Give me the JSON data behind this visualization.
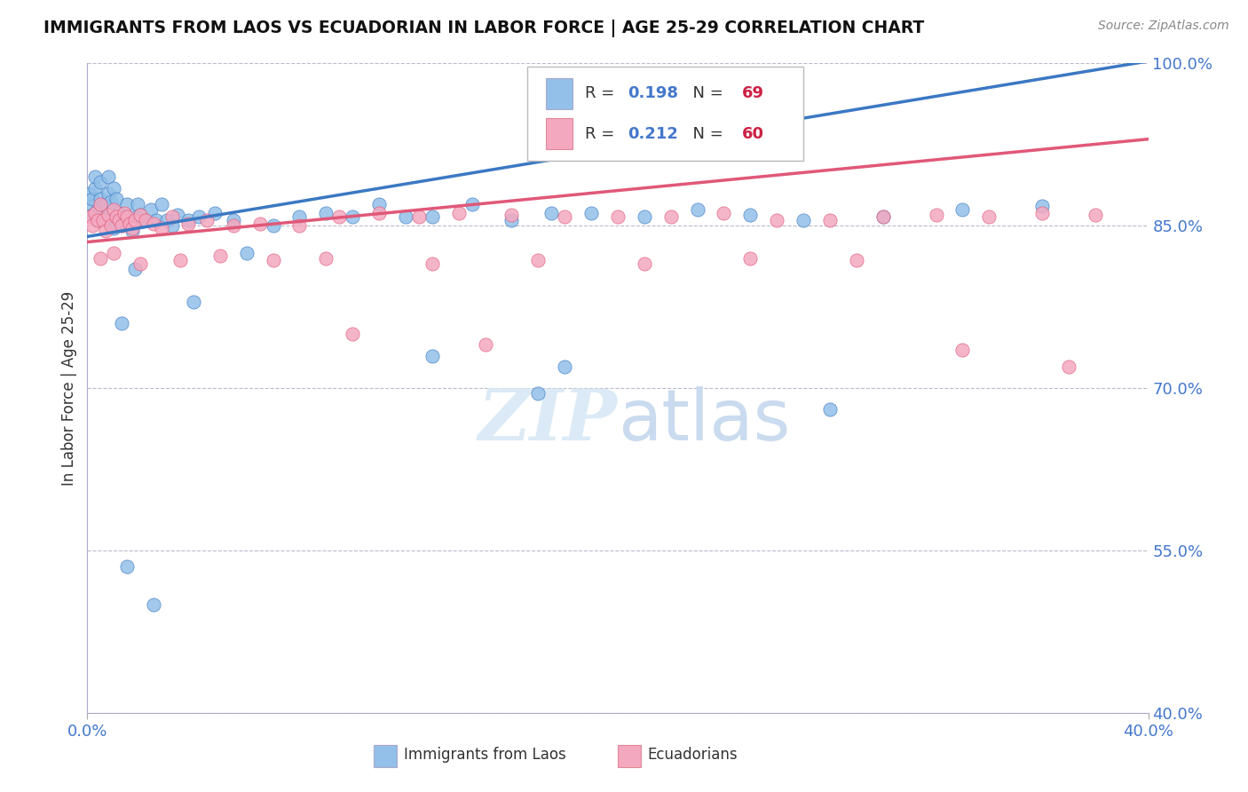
{
  "title": "IMMIGRANTS FROM LAOS VS ECUADORIAN IN LABOR FORCE | AGE 25-29 CORRELATION CHART",
  "source_text": "Source: ZipAtlas.com",
  "ylabel": "In Labor Force | Age 25-29",
  "xlim": [
    0.0,
    0.4
  ],
  "ylim": [
    0.4,
    1.0
  ],
  "yticks": [
    0.4,
    0.55,
    0.7,
    0.85,
    1.0
  ],
  "ytick_labels": [
    "40.0%",
    "55.0%",
    "70.0%",
    "85.0%",
    "100.0%"
  ],
  "blue_color": "#92C0E8",
  "pink_color": "#F4A8C0",
  "blue_line_color": "#3B78C3",
  "pink_line_color": "#E05878",
  "R_blue": 0.198,
  "N_blue": 69,
  "R_pink": 0.212,
  "N_pink": 60,
  "legend_label_blue": "Immigrants from Laos",
  "legend_label_pink": "Ecuadorians",
  "blue_x": [
    0.001,
    0.001,
    0.002,
    0.002,
    0.003,
    0.003,
    0.004,
    0.004,
    0.005,
    0.005,
    0.006,
    0.006,
    0.007,
    0.007,
    0.008,
    0.008,
    0.009,
    0.009,
    0.01,
    0.01,
    0.011,
    0.012,
    0.013,
    0.014,
    0.015,
    0.016,
    0.017,
    0.018,
    0.019,
    0.02,
    0.022,
    0.024,
    0.026,
    0.028,
    0.03,
    0.032,
    0.034,
    0.038,
    0.042,
    0.048,
    0.055,
    0.06,
    0.07,
    0.08,
    0.09,
    0.1,
    0.11,
    0.12,
    0.13,
    0.145,
    0.16,
    0.175,
    0.19,
    0.21,
    0.23,
    0.25,
    0.27,
    0.3,
    0.33,
    0.36,
    0.013,
    0.018,
    0.04,
    0.13,
    0.18,
    0.17,
    0.28,
    0.015,
    0.025
  ],
  "blue_y": [
    0.87,
    0.88,
    0.86,
    0.875,
    0.885,
    0.895,
    0.855,
    0.865,
    0.875,
    0.89,
    0.855,
    0.868,
    0.87,
    0.855,
    0.895,
    0.88,
    0.86,
    0.872,
    0.848,
    0.885,
    0.875,
    0.862,
    0.85,
    0.858,
    0.87,
    0.855,
    0.845,
    0.858,
    0.87,
    0.86,
    0.855,
    0.865,
    0.855,
    0.87,
    0.855,
    0.85,
    0.86,
    0.855,
    0.858,
    0.862,
    0.855,
    0.825,
    0.85,
    0.858,
    0.862,
    0.858,
    0.87,
    0.858,
    0.858,
    0.87,
    0.855,
    0.862,
    0.862,
    0.858,
    0.865,
    0.86,
    0.855,
    0.858,
    0.865,
    0.868,
    0.76,
    0.81,
    0.78,
    0.73,
    0.72,
    0.695,
    0.68,
    0.535,
    0.5
  ],
  "pink_x": [
    0.001,
    0.002,
    0.003,
    0.004,
    0.005,
    0.006,
    0.007,
    0.008,
    0.009,
    0.01,
    0.011,
    0.012,
    0.013,
    0.014,
    0.015,
    0.016,
    0.017,
    0.018,
    0.02,
    0.022,
    0.025,
    0.028,
    0.032,
    0.038,
    0.045,
    0.055,
    0.065,
    0.08,
    0.095,
    0.11,
    0.125,
    0.14,
    0.16,
    0.18,
    0.2,
    0.22,
    0.24,
    0.26,
    0.28,
    0.3,
    0.32,
    0.34,
    0.36,
    0.38,
    0.005,
    0.01,
    0.02,
    0.035,
    0.05,
    0.07,
    0.09,
    0.13,
    0.17,
    0.21,
    0.25,
    0.29,
    0.1,
    0.15,
    0.33,
    0.37
  ],
  "pink_y": [
    0.858,
    0.85,
    0.862,
    0.855,
    0.87,
    0.855,
    0.845,
    0.86,
    0.85,
    0.865,
    0.858,
    0.855,
    0.85,
    0.862,
    0.858,
    0.852,
    0.848,
    0.855,
    0.86,
    0.855,
    0.852,
    0.848,
    0.858,
    0.852,
    0.855,
    0.85,
    0.852,
    0.85,
    0.858,
    0.862,
    0.858,
    0.862,
    0.86,
    0.858,
    0.858,
    0.858,
    0.862,
    0.855,
    0.855,
    0.858,
    0.86,
    0.858,
    0.862,
    0.86,
    0.82,
    0.825,
    0.815,
    0.818,
    0.822,
    0.818,
    0.82,
    0.815,
    0.818,
    0.815,
    0.82,
    0.818,
    0.75,
    0.74,
    0.735,
    0.72
  ]
}
